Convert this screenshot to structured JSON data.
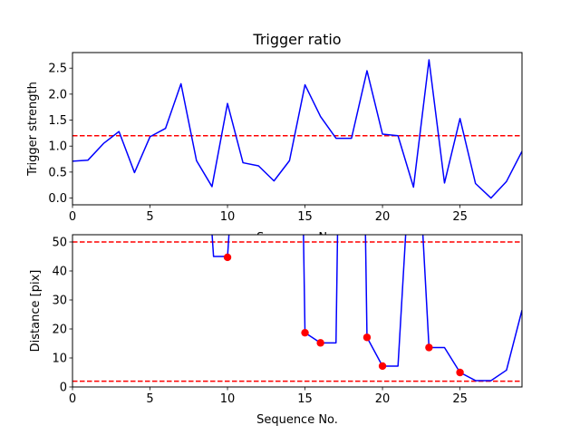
{
  "chart_data": [
    {
      "type": "line",
      "title": "Trigger ratio",
      "xlabel": "Sequence No.",
      "ylabel": "Trigger strength",
      "xlim": [
        0,
        29
      ],
      "ylim": [
        -0.13,
        2.8
      ],
      "xticks": [
        "0",
        "5",
        "10",
        "15",
        "20",
        "25"
      ],
      "xtick_values": [
        0,
        5,
        10,
        15,
        20,
        25
      ],
      "yticks": [
        "0.0",
        "0.5",
        "1.0",
        "1.5",
        "2.0",
        "2.5"
      ],
      "ytick_values": [
        0,
        0.5,
        1.0,
        1.5,
        2.0,
        2.5
      ],
      "grid": false,
      "series": [
        {
          "color": "#0000ff",
          "x": [
            0,
            1,
            2,
            3,
            4,
            5,
            6,
            7,
            8,
            9,
            10,
            11,
            12,
            13,
            14,
            15,
            16,
            17,
            18,
            19,
            20,
            21,
            22,
            23,
            24,
            25,
            26,
            27,
            28,
            29
          ],
          "values": [
            0.71,
            0.73,
            1.05,
            1.28,
            0.49,
            1.18,
            1.34,
            2.2,
            0.72,
            0.22,
            1.82,
            0.68,
            0.62,
            0.33,
            0.72,
            2.18,
            1.57,
            1.15,
            1.15,
            2.45,
            1.23,
            1.2,
            0.21,
            2.66,
            0.29,
            1.53,
            0.28,
            0.0,
            0.32,
            0.9
          ]
        }
      ],
      "hlines": [
        {
          "y": 1.2,
          "color": "#ff0000",
          "style": "dashed"
        }
      ]
    },
    {
      "type": "line",
      "title": "",
      "xlabel": "Sequence No.",
      "ylabel": "Distance [pix]",
      "xlim": [
        0,
        29
      ],
      "ylim": [
        0,
        52.5
      ],
      "xticks": [
        "0",
        "5",
        "10",
        "15",
        "20",
        "25"
      ],
      "xtick_values": [
        0,
        5,
        10,
        15,
        20,
        25
      ],
      "yticks": [
        "0",
        "10",
        "20",
        "30",
        "40",
        "50"
      ],
      "ytick_values": [
        0,
        10,
        20,
        30,
        40,
        50
      ],
      "grid": false,
      "series": [
        {
          "color": "#0000ff",
          "x": [
            9,
            9.1,
            9.9,
            10,
            10.1,
            14.9,
            15,
            16,
            17,
            17.1,
            18.9,
            19,
            20,
            21,
            21.5,
            22.6,
            23,
            24,
            25,
            26,
            27,
            28,
            29
          ],
          "values": [
            53,
            45,
            45,
            44.7,
            53,
            53,
            18.7,
            15.2,
            15.2,
            53,
            53,
            17.1,
            7.2,
            7.2,
            53,
            53,
            13.6,
            13.6,
            5.0,
            2.2,
            2.2,
            5.8,
            26.5
          ]
        }
      ],
      "markers": {
        "color": "#ff0000",
        "x": [
          10,
          15,
          16,
          19,
          20,
          23,
          25
        ],
        "values": [
          44.7,
          18.7,
          15.2,
          17.1,
          7.2,
          13.6,
          5.0
        ]
      },
      "hlines": [
        {
          "y": 50,
          "color": "#ff0000",
          "style": "dashed"
        },
        {
          "y": 2,
          "color": "#ff0000",
          "style": "dashed"
        }
      ]
    }
  ]
}
